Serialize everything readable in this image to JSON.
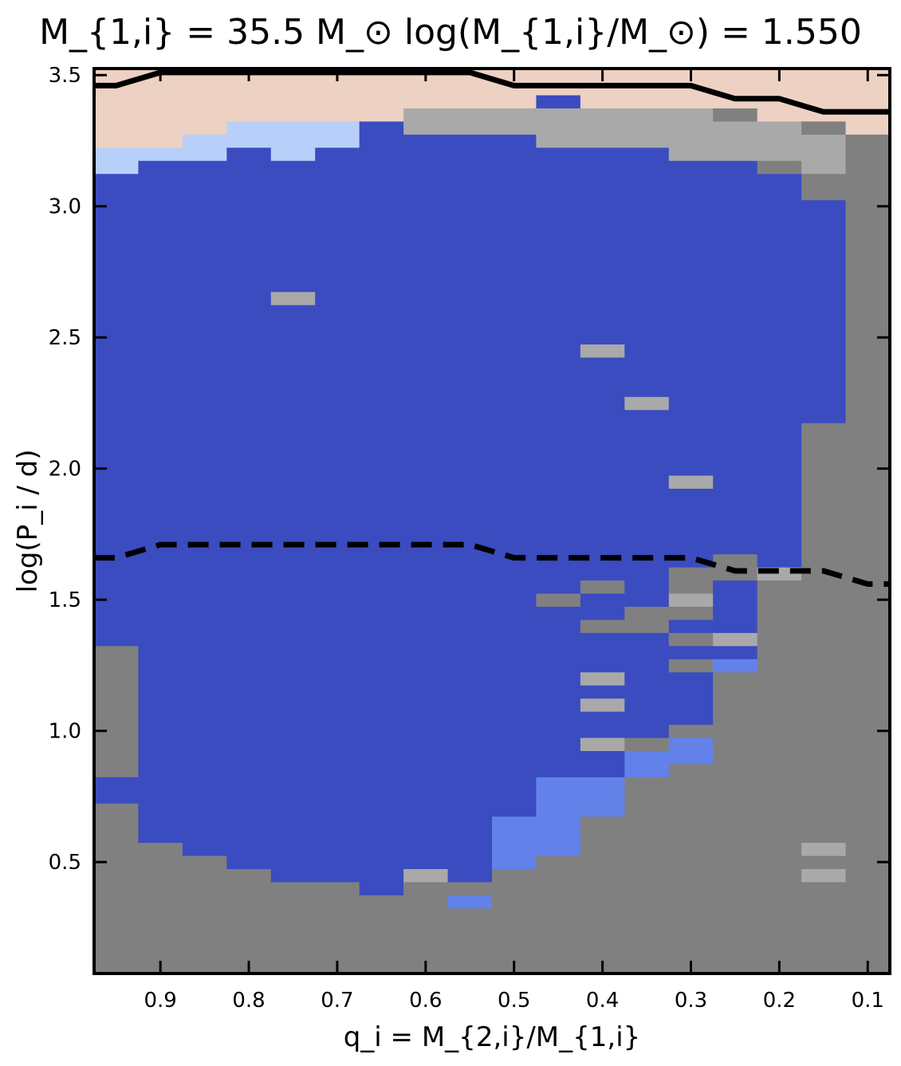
{
  "chart_data": {
    "type": "heatmap",
    "title": "M_{1,i} = 35.5 M_⊙    log(M_{1,i}/M_⊙) = 1.550",
    "xlabel": "q_i = M_{2,i}/M_{1,i}",
    "ylabel": "log(P_i / d)",
    "xlim": [
      0.975,
      0.075
    ],
    "ylim": [
      0.075,
      3.525
    ],
    "xticks": [
      0.9,
      0.8,
      0.7,
      0.6,
      0.5,
      0.4,
      0.3,
      0.2,
      0.1
    ],
    "xtick_labels": [
      "0.9",
      "0.8",
      "0.7",
      "0.6",
      "0.5",
      "0.4",
      "0.3",
      "0.2",
      "0.1"
    ],
    "yticks": [
      0.5,
      1.0,
      1.5,
      2.0,
      2.5,
      3.0,
      3.5
    ],
    "ytick_labels": [
      "0.5",
      "1.0",
      "1.5",
      "2.0",
      "2.5",
      "3.0",
      "3.5"
    ],
    "grid_columns_q": [
      0.95,
      0.9,
      0.85,
      0.8,
      0.75,
      0.7,
      0.65,
      0.6,
      0.55,
      0.5,
      0.45,
      0.4,
      0.35,
      0.3,
      0.25,
      0.2,
      0.15,
      0.1
    ],
    "row_step_logP": 0.05,
    "palette": {
      "D": "#3a4cc0",
      "M": "#6282ea",
      "L": "#b8d0f9",
      "G": "#808080",
      "S": "#a9a9a9",
      "P": "#edd1c2",
      "W": "#ffffff"
    },
    "cells": [
      {
        "q": 0.95,
        "y": [
          0.075,
          0.725
        ],
        "c": "G"
      },
      {
        "q": 0.95,
        "y": [
          0.725,
          0.825
        ],
        "c": "D"
      },
      {
        "q": 0.95,
        "y": [
          0.825,
          1.325
        ],
        "c": "G"
      },
      {
        "q": 0.95,
        "y": [
          1.325,
          3.125
        ],
        "c": "D"
      },
      {
        "q": 0.95,
        "y": [
          3.125,
          3.225
        ],
        "c": "L"
      },
      {
        "q": 0.95,
        "y": [
          3.225,
          3.525
        ],
        "c": "P"
      },
      {
        "q": 0.9,
        "y": [
          0.075,
          0.575
        ],
        "c": "G"
      },
      {
        "q": 0.9,
        "y": [
          0.575,
          3.175
        ],
        "c": "D"
      },
      {
        "q": 0.9,
        "y": [
          3.175,
          3.225
        ],
        "c": "L"
      },
      {
        "q": 0.9,
        "y": [
          3.225,
          3.525
        ],
        "c": "P"
      },
      {
        "q": 0.85,
        "y": [
          0.075,
          0.525
        ],
        "c": "G"
      },
      {
        "q": 0.85,
        "y": [
          0.525,
          3.175
        ],
        "c": "D"
      },
      {
        "q": 0.85,
        "y": [
          3.175,
          3.275
        ],
        "c": "L"
      },
      {
        "q": 0.85,
        "y": [
          3.275,
          3.525
        ],
        "c": "P"
      },
      {
        "q": 0.8,
        "y": [
          0.075,
          0.475
        ],
        "c": "G"
      },
      {
        "q": 0.8,
        "y": [
          0.475,
          3.225
        ],
        "c": "D"
      },
      {
        "q": 0.8,
        "y": [
          3.225,
          3.325
        ],
        "c": "L"
      },
      {
        "q": 0.8,
        "y": [
          3.325,
          3.525
        ],
        "c": "P"
      },
      {
        "q": 0.75,
        "y": [
          0.075,
          0.425
        ],
        "c": "G"
      },
      {
        "q": 0.75,
        "y": [
          0.425,
          2.625
        ],
        "c": "D"
      },
      {
        "q": 0.75,
        "y": [
          2.625,
          2.675
        ],
        "c": "S"
      },
      {
        "q": 0.75,
        "y": [
          2.675,
          3.175
        ],
        "c": "D"
      },
      {
        "q": 0.75,
        "y": [
          3.175,
          3.325
        ],
        "c": "L"
      },
      {
        "q": 0.75,
        "y": [
          3.325,
          3.525
        ],
        "c": "P"
      },
      {
        "q": 0.7,
        "y": [
          0.075,
          0.425
        ],
        "c": "G"
      },
      {
        "q": 0.7,
        "y": [
          0.425,
          3.225
        ],
        "c": "D"
      },
      {
        "q": 0.7,
        "y": [
          3.225,
          3.325
        ],
        "c": "L"
      },
      {
        "q": 0.7,
        "y": [
          3.325,
          3.525
        ],
        "c": "P"
      },
      {
        "q": 0.65,
        "y": [
          0.075,
          0.375
        ],
        "c": "G"
      },
      {
        "q": 0.65,
        "y": [
          0.375,
          3.325
        ],
        "c": "D"
      },
      {
        "q": 0.65,
        "y": [
          3.325,
          3.525
        ],
        "c": "P"
      },
      {
        "q": 0.6,
        "y": [
          0.075,
          0.425
        ],
        "c": "G"
      },
      {
        "q": 0.6,
        "y": [
          0.425,
          0.475
        ],
        "c": "S"
      },
      {
        "q": 0.6,
        "y": [
          0.475,
          3.275
        ],
        "c": "D"
      },
      {
        "q": 0.6,
        "y": [
          3.275,
          3.375
        ],
        "c": "S"
      },
      {
        "q": 0.6,
        "y": [
          3.375,
          3.525
        ],
        "c": "P"
      },
      {
        "q": 0.55,
        "y": [
          0.075,
          0.325
        ],
        "c": "G"
      },
      {
        "q": 0.55,
        "y": [
          0.325,
          0.375
        ],
        "c": "M"
      },
      {
        "q": 0.55,
        "y": [
          0.375,
          0.425
        ],
        "c": "G"
      },
      {
        "q": 0.55,
        "y": [
          0.425,
          3.275
        ],
        "c": "D"
      },
      {
        "q": 0.55,
        "y": [
          3.275,
          3.375
        ],
        "c": "S"
      },
      {
        "q": 0.55,
        "y": [
          3.375,
          3.525
        ],
        "c": "P"
      },
      {
        "q": 0.5,
        "y": [
          0.075,
          0.475
        ],
        "c": "G"
      },
      {
        "q": 0.5,
        "y": [
          0.475,
          0.675
        ],
        "c": "M"
      },
      {
        "q": 0.5,
        "y": [
          0.675,
          3.275
        ],
        "c": "D"
      },
      {
        "q": 0.5,
        "y": [
          3.275,
          3.375
        ],
        "c": "S"
      },
      {
        "q": 0.5,
        "y": [
          3.375,
          3.525
        ],
        "c": "P"
      },
      {
        "q": 0.45,
        "y": [
          0.075,
          0.525
        ],
        "c": "G"
      },
      {
        "q": 0.45,
        "y": [
          0.525,
          0.825
        ],
        "c": "M"
      },
      {
        "q": 0.45,
        "y": [
          0.825,
          1.475
        ],
        "c": "D"
      },
      {
        "q": 0.45,
        "y": [
          1.475,
          1.525
        ],
        "c": "G"
      },
      {
        "q": 0.45,
        "y": [
          1.525,
          3.225
        ],
        "c": "D"
      },
      {
        "q": 0.45,
        "y": [
          3.225,
          3.375
        ],
        "c": "S"
      },
      {
        "q": 0.45,
        "y": [
          3.375,
          3.425
        ],
        "c": "D"
      },
      {
        "q": 0.45,
        "y": [
          3.425,
          3.525
        ],
        "c": "P"
      },
      {
        "q": 0.4,
        "y": [
          0.075,
          0.675
        ],
        "c": "G"
      },
      {
        "q": 0.4,
        "y": [
          0.675,
          0.825
        ],
        "c": "M"
      },
      {
        "q": 0.4,
        "y": [
          0.825,
          0.925
        ],
        "c": "D"
      },
      {
        "q": 0.4,
        "y": [
          0.925,
          0.975
        ],
        "c": "S"
      },
      {
        "q": 0.4,
        "y": [
          0.975,
          1.075
        ],
        "c": "D"
      },
      {
        "q": 0.4,
        "y": [
          1.075,
          1.125
        ],
        "c": "S"
      },
      {
        "q": 0.4,
        "y": [
          1.125,
          1.175
        ],
        "c": "D"
      },
      {
        "q": 0.4,
        "y": [
          1.175,
          1.225
        ],
        "c": "S"
      },
      {
        "q": 0.4,
        "y": [
          1.225,
          1.375
        ],
        "c": "D"
      },
      {
        "q": 0.4,
        "y": [
          1.375,
          1.425
        ],
        "c": "G"
      },
      {
        "q": 0.4,
        "y": [
          1.425,
          1.525
        ],
        "c": "D"
      },
      {
        "q": 0.4,
        "y": [
          1.525,
          1.575
        ],
        "c": "G"
      },
      {
        "q": 0.4,
        "y": [
          1.575,
          2.425
        ],
        "c": "D"
      },
      {
        "q": 0.4,
        "y": [
          2.425,
          2.475
        ],
        "c": "S"
      },
      {
        "q": 0.4,
        "y": [
          2.475,
          3.225
        ],
        "c": "D"
      },
      {
        "q": 0.4,
        "y": [
          3.225,
          3.375
        ],
        "c": "S"
      },
      {
        "q": 0.4,
        "y": [
          3.375,
          3.525
        ],
        "c": "P"
      },
      {
        "q": 0.35,
        "y": [
          0.075,
          0.825
        ],
        "c": "G"
      },
      {
        "q": 0.35,
        "y": [
          0.825,
          0.925
        ],
        "c": "M"
      },
      {
        "q": 0.35,
        "y": [
          0.925,
          0.975
        ],
        "c": "G"
      },
      {
        "q": 0.35,
        "y": [
          0.975,
          1.375
        ],
        "c": "D"
      },
      {
        "q": 0.35,
        "y": [
          1.375,
          1.475
        ],
        "c": "G"
      },
      {
        "q": 0.35,
        "y": [
          1.475,
          2.225
        ],
        "c": "D"
      },
      {
        "q": 0.35,
        "y": [
          2.225,
          2.275
        ],
        "c": "S"
      },
      {
        "q": 0.35,
        "y": [
          2.275,
          3.225
        ],
        "c": "D"
      },
      {
        "q": 0.35,
        "y": [
          3.225,
          3.375
        ],
        "c": "S"
      },
      {
        "q": 0.35,
        "y": [
          3.375,
          3.525
        ],
        "c": "P"
      },
      {
        "q": 0.3,
        "y": [
          0.075,
          0.875
        ],
        "c": "G"
      },
      {
        "q": 0.3,
        "y": [
          0.875,
          0.975
        ],
        "c": "M"
      },
      {
        "q": 0.3,
        "y": [
          0.975,
          1.025
        ],
        "c": "G"
      },
      {
        "q": 0.3,
        "y": [
          1.025,
          1.225
        ],
        "c": "D"
      },
      {
        "q": 0.3,
        "y": [
          1.225,
          1.275
        ],
        "c": "G"
      },
      {
        "q": 0.3,
        "y": [
          1.275,
          1.325
        ],
        "c": "D"
      },
      {
        "q": 0.3,
        "y": [
          1.325,
          1.375
        ],
        "c": "G"
      },
      {
        "q": 0.3,
        "y": [
          1.375,
          1.425
        ],
        "c": "D"
      },
      {
        "q": 0.3,
        "y": [
          1.425,
          1.475
        ],
        "c": "G"
      },
      {
        "q": 0.3,
        "y": [
          1.475,
          1.525
        ],
        "c": "S"
      },
      {
        "q": 0.3,
        "y": [
          1.525,
          1.625
        ],
        "c": "G"
      },
      {
        "q": 0.3,
        "y": [
          1.625,
          1.925
        ],
        "c": "D"
      },
      {
        "q": 0.3,
        "y": [
          1.925,
          1.975
        ],
        "c": "S"
      },
      {
        "q": 0.3,
        "y": [
          1.975,
          3.175
        ],
        "c": "D"
      },
      {
        "q": 0.3,
        "y": [
          3.175,
          3.375
        ],
        "c": "S"
      },
      {
        "q": 0.3,
        "y": [
          3.375,
          3.525
        ],
        "c": "P"
      },
      {
        "q": 0.25,
        "y": [
          0.075,
          1.225
        ],
        "c": "G"
      },
      {
        "q": 0.25,
        "y": [
          1.225,
          1.275
        ],
        "c": "M"
      },
      {
        "q": 0.25,
        "y": [
          1.275,
          1.325
        ],
        "c": "D"
      },
      {
        "q": 0.25,
        "y": [
          1.325,
          1.375
        ],
        "c": "S"
      },
      {
        "q": 0.25,
        "y": [
          1.375,
          1.575
        ],
        "c": "D"
      },
      {
        "q": 0.25,
        "y": [
          1.575,
          1.675
        ],
        "c": "G"
      },
      {
        "q": 0.25,
        "y": [
          1.675,
          3.175
        ],
        "c": "D"
      },
      {
        "q": 0.25,
        "y": [
          3.175,
          3.325
        ],
        "c": "S"
      },
      {
        "q": 0.25,
        "y": [
          3.325,
          3.375
        ],
        "c": "G"
      },
      {
        "q": 0.25,
        "y": [
          3.375,
          3.525
        ],
        "c": "P"
      },
      {
        "q": 0.2,
        "y": [
          0.075,
          1.575
        ],
        "c": "G"
      },
      {
        "q": 0.2,
        "y": [
          1.575,
          1.625
        ],
        "c": "S"
      },
      {
        "q": 0.2,
        "y": [
          1.625,
          3.125
        ],
        "c": "D"
      },
      {
        "q": 0.2,
        "y": [
          3.125,
          3.175
        ],
        "c": "G"
      },
      {
        "q": 0.2,
        "y": [
          3.175,
          3.325
        ],
        "c": "S"
      },
      {
        "q": 0.2,
        "y": [
          3.325,
          3.525
        ],
        "c": "P"
      },
      {
        "q": 0.15,
        "y": [
          0.075,
          0.425
        ],
        "c": "G"
      },
      {
        "q": 0.15,
        "y": [
          0.425,
          0.475
        ],
        "c": "S"
      },
      {
        "q": 0.15,
        "y": [
          0.475,
          0.525
        ],
        "c": "G"
      },
      {
        "q": 0.15,
        "y": [
          0.525,
          0.575
        ],
        "c": "S"
      },
      {
        "q": 0.15,
        "y": [
          0.575,
          2.175
        ],
        "c": "G"
      },
      {
        "q": 0.15,
        "y": [
          2.175,
          3.025
        ],
        "c": "D"
      },
      {
        "q": 0.15,
        "y": [
          3.025,
          3.125
        ],
        "c": "G"
      },
      {
        "q": 0.15,
        "y": [
          3.125,
          3.275
        ],
        "c": "S"
      },
      {
        "q": 0.15,
        "y": [
          3.275,
          3.325
        ],
        "c": "G"
      },
      {
        "q": 0.15,
        "y": [
          3.325,
          3.525
        ],
        "c": "P"
      },
      {
        "q": 0.1,
        "y": [
          0.075,
          3.275
        ],
        "c": "G"
      },
      {
        "q": 0.1,
        "y": [
          3.275,
          3.525
        ],
        "c": "P"
      }
    ],
    "lines": [
      {
        "style": "solid",
        "color": "#000000",
        "x": [
          0.975,
          0.95,
          0.9,
          0.85,
          0.8,
          0.75,
          0.7,
          0.65,
          0.6,
          0.55,
          0.5,
          0.45,
          0.4,
          0.35,
          0.3,
          0.25,
          0.2,
          0.15,
          0.1,
          0.075
        ],
        "y": [
          3.46,
          3.46,
          3.51,
          3.51,
          3.51,
          3.51,
          3.51,
          3.51,
          3.51,
          3.51,
          3.46,
          3.46,
          3.46,
          3.46,
          3.46,
          3.41,
          3.41,
          3.36,
          3.36,
          3.36
        ]
      },
      {
        "style": "dashed",
        "color": "#000000",
        "x": [
          0.975,
          0.95,
          0.9,
          0.85,
          0.8,
          0.75,
          0.7,
          0.65,
          0.6,
          0.55,
          0.5,
          0.45,
          0.4,
          0.35,
          0.3,
          0.25,
          0.2,
          0.15,
          0.1,
          0.075
        ],
        "y": [
          1.66,
          1.66,
          1.71,
          1.71,
          1.71,
          1.71,
          1.71,
          1.71,
          1.71,
          1.71,
          1.66,
          1.66,
          1.66,
          1.66,
          1.66,
          1.61,
          1.61,
          1.61,
          1.56,
          1.56
        ]
      }
    ]
  }
}
